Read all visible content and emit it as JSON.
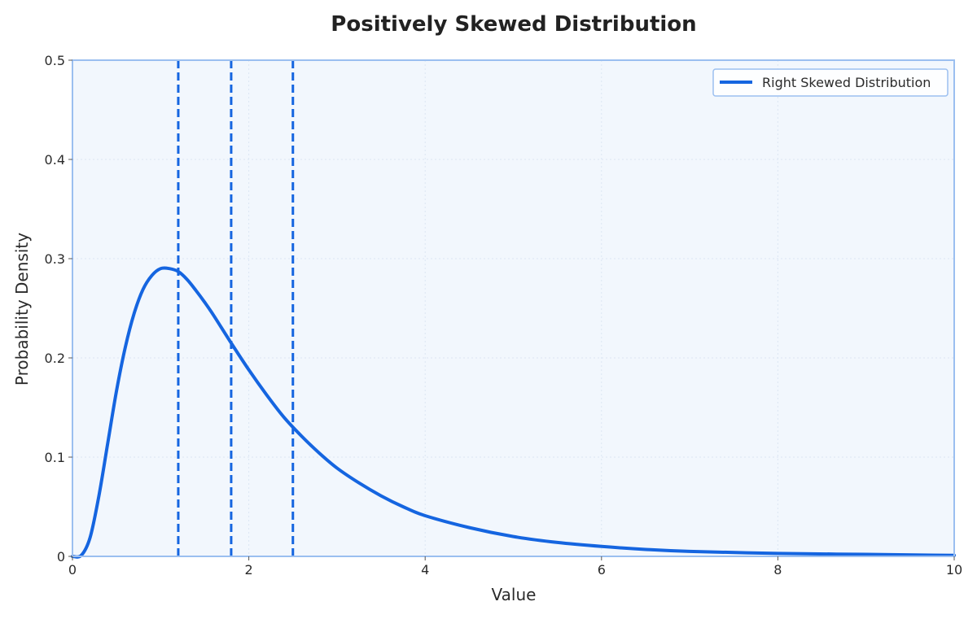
{
  "chart_data": {
    "type": "line",
    "title": "Positively Skewed Distribution",
    "xlabel": "Value",
    "ylabel": "Probability Density",
    "xlim": [
      0,
      10
    ],
    "ylim": [
      0,
      0.5
    ],
    "x_ticks": [
      "0",
      "2",
      "4",
      "6",
      "8",
      "10"
    ],
    "y_ticks": [
      "0",
      "0.1",
      "0.2",
      "0.3",
      "0.4",
      "0.5"
    ],
    "grid": true,
    "legend_position": "top-right",
    "series": [
      {
        "name": "Right Skewed Distribution",
        "color": "#1565e0",
        "x": [
          0,
          0.1,
          0.2,
          0.3,
          0.4,
          0.5,
          0.6,
          0.7,
          0.8,
          0.9,
          1.0,
          1.1,
          1.2,
          1.3,
          1.4,
          1.5,
          1.6,
          1.8,
          2.0,
          2.2,
          2.4,
          2.6,
          2.8,
          3.0,
          3.25,
          3.5,
          3.75,
          4.0,
          4.5,
          5.0,
          5.5,
          6.0,
          6.5,
          7.0,
          8.0,
          9.0,
          10.0
        ],
        "y": [
          0,
          0.001,
          0.019,
          0.061,
          0.114,
          0.167,
          0.211,
          0.245,
          0.269,
          0.283,
          0.29,
          0.29,
          0.287,
          0.279,
          0.268,
          0.256,
          0.243,
          0.215,
          0.188,
          0.163,
          0.14,
          0.121,
          0.104,
          0.089,
          0.074,
          0.061,
          0.05,
          0.041,
          0.029,
          0.02,
          0.014,
          0.01,
          0.007,
          0.005,
          0.003,
          0.002,
          0.001
        ]
      }
    ],
    "vlines": [
      {
        "x": 1.2,
        "color": "#1565e0",
        "style": "dashed"
      },
      {
        "x": 1.8,
        "color": "#1565e0",
        "style": "dashed"
      },
      {
        "x": 2.5,
        "color": "#1565e0",
        "style": "dashed"
      }
    ],
    "colors": {
      "plot_bg": "#f2f7fd",
      "frame": "#9bbff0",
      "grid": "#dce6f3"
    }
  }
}
